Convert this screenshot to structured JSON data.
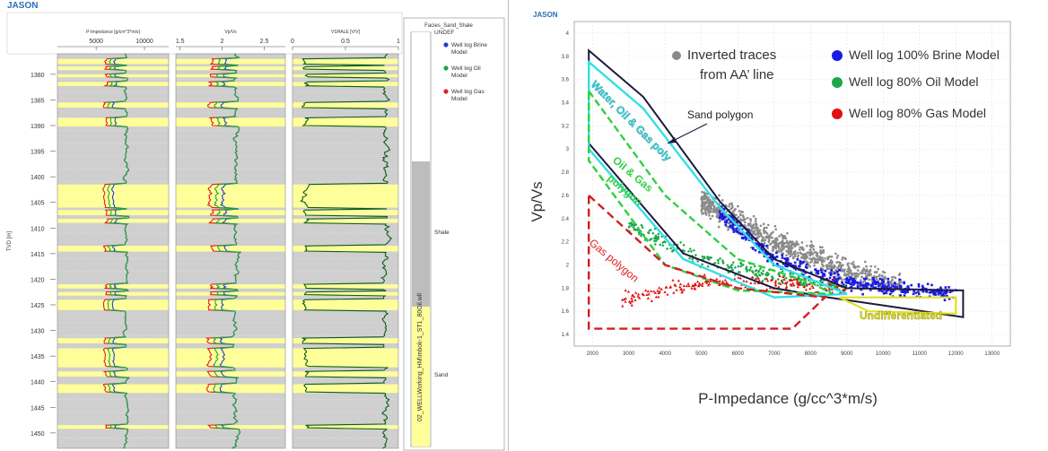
{
  "left_panel": {
    "brand": "JASON",
    "depth_axis_label": "TVD [m]",
    "depth_ticks": [
      "1380",
      "1385",
      "1390",
      "1395",
      "1400",
      "1405",
      "1410",
      "1415",
      "1420",
      "1425",
      "1430",
      "1435",
      "1440",
      "1445",
      "1450"
    ],
    "tracks": [
      {
        "title": "P-Impedance [g/cm^3*m/s]",
        "ticks": [
          "5000",
          "10000"
        ]
      },
      {
        "title": "Vp/Vs",
        "ticks": [
          "1.5",
          "2",
          "2.5"
        ]
      },
      {
        "title": "VSHALE [V/V]",
        "ticks": [
          "0",
          "0.5",
          "1"
        ]
      }
    ],
    "legend_title": "Facies_Sand_Shale",
    "legend_items": [
      {
        "label": "Well log Brine Model",
        "color": "#1f3fd6"
      },
      {
        "label": "Well log Oil Model",
        "color": "#1aa84a"
      },
      {
        "label": "Well log Gas Model",
        "color": "#e02020"
      }
    ],
    "facies_labels": [
      "UNDEF",
      "Shale",
      "Sand"
    ],
    "well_name": "02_WELLWorking_HM\\mbok-1_ST1_80Oil.wll",
    "colors": {
      "sand": "#ffff99",
      "shale": "#cfcfcf",
      "undef": "#ffffff",
      "vshale": "#0d5c1a"
    }
  },
  "right_panel": {
    "brand": "JASON",
    "xlabel": "P-Impedance (g/cc^3*m/s)",
    "ylabel": "Vp/Vs",
    "legend": [
      {
        "label": "Inverted traces",
        "sub": "from AA’ line",
        "color": "#8a8a8a"
      },
      {
        "label": "Well log 100% Brine Model",
        "color": "#1a1ae6"
      },
      {
        "label": "Well log 80% Oil Model",
        "color": "#1aa84a"
      },
      {
        "label": "Well log 80% Gas Model",
        "color": "#e01010"
      }
    ],
    "annotations": {
      "sand_polygon": "Sand polygon",
      "water_oil_gas": "Water, Oil & Gas poly",
      "oil_gas": "Oil & Gas",
      "oil_gas_2": "polygon",
      "gas_polygon": "Gas polygon",
      "undiff": "Undifferentiated"
    }
  },
  "chart_data": [
    {
      "type": "line",
      "title": "",
      "xlabel": "",
      "ylabel": "TVD [m]",
      "depth_range": [
        1376,
        1453
      ],
      "tracks": [
        {
          "name": "P-Impedance [g/cm^3*m/s]",
          "xlim": [
            1000,
            12500
          ]
        },
        {
          "name": "Vp/Vs",
          "xlim": [
            1.45,
            2.75
          ]
        },
        {
          "name": "VSHALE [V/V]",
          "xlim": [
            0,
            1
          ]
        }
      ],
      "sand_intervals": [
        [
          1377,
          1378
        ],
        [
          1378.5,
          1379.2
        ],
        [
          1380,
          1380.6
        ],
        [
          1381.5,
          1382.3
        ],
        [
          1385.5,
          1386.5
        ],
        [
          1388.5,
          1390.2
        ],
        [
          1401.5,
          1406
        ],
        [
          1406.5,
          1407.5
        ],
        [
          1408.2,
          1409
        ],
        [
          1413.5,
          1414.6
        ],
        [
          1421,
          1421.8
        ],
        [
          1422.5,
          1423.2
        ],
        [
          1424,
          1426
        ],
        [
          1431.5,
          1432.5
        ],
        [
          1433.5,
          1437.2
        ],
        [
          1438,
          1439
        ],
        [
          1440.5,
          1442.2
        ],
        [
          1448.5,
          1449.2
        ]
      ],
      "facies_bar": [
        {
          "label": "UNDEF",
          "from": 1376,
          "to": 1400
        },
        {
          "label": "Shale",
          "from": 1400,
          "to": 1427
        },
        {
          "label": "Sand",
          "from": 1427,
          "to": 1453
        }
      ]
    },
    {
      "type": "scatter",
      "title": "",
      "xlabel": "P-Impedance (g/cc^3*m/s)",
      "ylabel": "Vp/Vs",
      "xlim": [
        1500,
        13500
      ],
      "ylim": [
        1.3,
        4.1
      ],
      "xticks": [
        2000,
        3000,
        4000,
        5000,
        6000,
        7000,
        8000,
        9000,
        10000,
        11000,
        12000,
        13000
      ],
      "yticks": [
        1.4,
        1.6,
        1.8,
        2,
        2.2,
        2.4,
        2.6,
        2.8,
        3,
        3.2,
        3.4,
        3.6,
        3.8,
        4
      ],
      "polygons": [
        {
          "name": "Sand polygon",
          "color": "#1a1a40",
          "points": [
            [
              1900,
              3.85
            ],
            [
              3400,
              3.45
            ],
            [
              5500,
              2.55
            ],
            [
              7000,
              2.05
            ],
            [
              9000,
              1.8
            ],
            [
              12200,
              1.78
            ],
            [
              12200,
              1.55
            ],
            [
              8500,
              1.72
            ],
            [
              7000,
              1.8
            ],
            [
              4500,
              2.1
            ],
            [
              1900,
              3.05
            ]
          ]
        },
        {
          "name": "Water, Oil & Gas polygon",
          "color": "#33e0e6",
          "points": [
            [
              1900,
              3.75
            ],
            [
              3400,
              3.35
            ],
            [
              5500,
              2.5
            ],
            [
              7000,
              2.0
            ],
            [
              9000,
              1.75
            ],
            [
              7000,
              1.72
            ],
            [
              4500,
              2.05
            ],
            [
              1900,
              3.0
            ]
          ]
        },
        {
          "name": "Oil & Gas polygon",
          "color": "#2fd040",
          "points": [
            [
              1900,
              3.5
            ],
            [
              4000,
              2.6
            ],
            [
              6000,
              2.05
            ],
            [
              8000,
              1.85
            ],
            [
              8600,
              1.75
            ],
            [
              6000,
              1.78
            ],
            [
              4000,
              2.0
            ],
            [
              1900,
              2.9
            ]
          ]
        },
        {
          "name": "Gas polygon",
          "color": "#d02020",
          "points": [
            [
              1900,
              2.6
            ],
            [
              4000,
              2.0
            ],
            [
              6000,
              1.8
            ],
            [
              8400,
              1.72
            ],
            [
              7500,
              1.45
            ],
            [
              1900,
              1.45
            ]
          ]
        },
        {
          "name": "Undifferentiated",
          "color": "#e0e020",
          "points": [
            [
              8800,
              1.72
            ],
            [
              12000,
              1.72
            ],
            [
              12000,
              1.58
            ],
            [
              9600,
              1.6
            ]
          ]
        }
      ],
      "series": [
        {
          "name": "Inverted traces from AA’ line",
          "color": "#8a8a8a",
          "cluster": {
            "x": [
              5000,
              10500
            ],
            "y_center_at_x": [
              [
                5000,
                2.55
              ],
              [
                7000,
                2.2
              ],
              [
                9000,
                1.95
              ],
              [
                10500,
                1.8
              ]
            ]
          }
        },
        {
          "name": "Well log 100% Brine Model",
          "color": "#1a1ae6",
          "cluster": {
            "x": [
              5500,
              12000
            ],
            "y_center_at_x": [
              [
                5500,
                2.45
              ],
              [
                7000,
                2.05
              ],
              [
                9000,
                1.85
              ],
              [
                12000,
                1.75
              ]
            ]
          }
        },
        {
          "name": "Well log 80% Oil Model",
          "color": "#1aa84a",
          "cluster": {
            "x": [
              3000,
              9000
            ],
            "y_center_at_x": [
              [
                3000,
                2.35
              ],
              [
                5000,
                2.05
              ],
              [
                7000,
                1.9
              ],
              [
                9000,
                1.8
              ]
            ]
          }
        },
        {
          "name": "Well log 80% Gas Model",
          "color": "#e01010",
          "cluster": {
            "x": [
              2800,
              9000
            ],
            "y_center_at_x": [
              [
                2800,
                1.7
              ],
              [
                5000,
                1.85
              ],
              [
                7000,
                1.85
              ],
              [
                9000,
                1.78
              ]
            ]
          }
        }
      ]
    }
  ]
}
